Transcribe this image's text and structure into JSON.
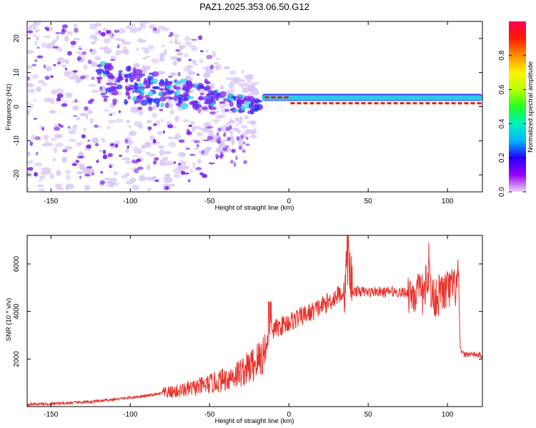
{
  "page_title": "PAZ1.2025.353.06.50.G12",
  "colors": {
    "trace": "#e8322c",
    "spec_core": "#e21e16",
    "spec_shell": "#2bd3e6",
    "spec_outer": "#1f2bff",
    "spec_faint": "#d9c6f5",
    "spec_mid": "#7a24ec"
  },
  "chart_data": [
    {
      "type": "heatmap",
      "name": "spectrogram",
      "xlabel": "Height of straight line (km)",
      "ylabel": "Frequency (Hz)",
      "xlim": [
        -165,
        122
      ],
      "ylim": [
        -25,
        25
      ],
      "xticks": [
        -150,
        -100,
        -50,
        0,
        50,
        100
      ],
      "xtick_labels": [
        "-150",
        "-100",
        "-50",
        "0",
        "50",
        "100"
      ],
      "yticks": [
        -20,
        -10,
        0,
        10,
        20
      ],
      "ytick_labels": [
        "-20",
        "-10",
        "0",
        "10",
        "20"
      ],
      "grid": false,
      "description_data": {
        "dominant_line_height_km": [
          -17,
          122
        ],
        "dominant_line_frequency_hz": [
          2.5,
          1.0
        ],
        "peak_amplitude_band": "near 1 Hz for heights above 0 km"
      }
    },
    {
      "type": "colorbar",
      "name": "amplitude-colorbar",
      "label": "Normalized spectral amplitude",
      "range": [
        0.0,
        1.0
      ],
      "ticks": [
        0.0,
        0.2,
        0.4,
        0.6,
        0.8
      ],
      "tick_labels": [
        "0.0",
        "0.2",
        "0.4",
        "0.6",
        "0.8"
      ],
      "colormap": [
        "#e8d8f8",
        "#9a00ff",
        "#2000ff",
        "#00b6ff",
        "#00f0c0",
        "#22ff22",
        "#b8ff00",
        "#fff200",
        "#ff9000",
        "#ff1a00",
        "#ff0050"
      ]
    },
    {
      "type": "line",
      "name": "snr-trace",
      "xlabel": "Height of straight line (km)",
      "ylabel": "SNR (10 * v/v)",
      "xlim": [
        -165,
        122
      ],
      "ylim": [
        0,
        7200
      ],
      "xticks": [
        -150,
        -100,
        -50,
        0,
        50,
        100
      ],
      "xtick_labels": [
        "-150",
        "-100",
        "-50",
        "0",
        "50",
        "100"
      ],
      "yticks": [
        2000,
        4000,
        6000
      ],
      "ytick_labels": [
        "2000",
        "4000",
        "6000"
      ],
      "grid": false,
      "series": [
        {
          "name": "SNR",
          "x": [
            -165,
            -150,
            -140,
            -130,
            -120,
            -110,
            -100,
            -90,
            -80,
            -70,
            -60,
            -50,
            -45,
            -40,
            -35,
            -30,
            -25,
            -20,
            -15,
            -12,
            -10,
            -5,
            0,
            5,
            10,
            15,
            20,
            25,
            30,
            35,
            37,
            40,
            45,
            50,
            55,
            60,
            65,
            70,
            75,
            80,
            85,
            88,
            90,
            95,
            100,
            105,
            107,
            108,
            110,
            115,
            122
          ],
          "y": [
            100,
            120,
            150,
            180,
            230,
            300,
            380,
            450,
            550,
            650,
            780,
            950,
            1050,
            1150,
            1300,
            1450,
            1650,
            1900,
            2300,
            3100,
            3200,
            3400,
            3550,
            3700,
            3850,
            4000,
            4200,
            4400,
            4650,
            4850,
            6500,
            4850,
            4850,
            4800,
            4850,
            4800,
            4850,
            4800,
            4800,
            4750,
            4700,
            5800,
            4600,
            4700,
            4900,
            5000,
            5400,
            2400,
            2200,
            2200,
            2150
          ]
        }
      ]
    }
  ]
}
